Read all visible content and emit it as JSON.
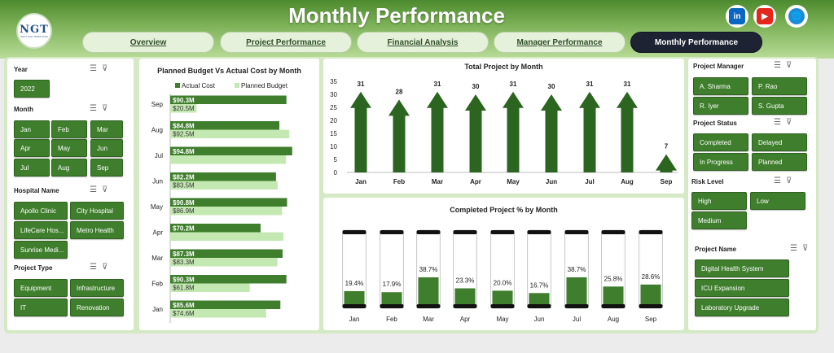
{
  "header": {
    "title": "Monthly Performance",
    "logo_text": "NGT",
    "logo_sub": "NEXT GEN TEMPLATES"
  },
  "social": [
    {
      "name": "linkedin-icon",
      "glyph": "in",
      "color": "#0a66c2"
    },
    {
      "name": "youtube-icon",
      "glyph": "▶",
      "color": "#e4261c"
    },
    {
      "name": "globe-icon",
      "glyph": "🌐",
      "color": "#1e8bd6"
    }
  ],
  "nav": {
    "tabs": [
      {
        "label": "Overview",
        "active": false
      },
      {
        "label": "Project Performance",
        "active": false
      },
      {
        "label": "Financial Analysis",
        "active": false
      },
      {
        "label": "Manager Performance",
        "active": false
      },
      {
        "label": "Monthly Performance",
        "active": true
      }
    ]
  },
  "left_slicers": [
    {
      "label": "Year",
      "items": [
        "2022"
      ]
    },
    {
      "label": "Month",
      "items": [
        "Jan",
        "Feb",
        "Mar",
        "Apr",
        "May",
        "Jun",
        "Jul",
        "Aug",
        "Sep"
      ]
    },
    {
      "label": "Hospital Name",
      "items": [
        "Apollo Clinic",
        "City Hospital",
        "LifeCare Hos...",
        "Metro Health",
        "Sunrise Medi..."
      ]
    },
    {
      "label": "Project Type",
      "items": [
        "Equipment",
        "Infrastructure",
        "IT",
        "Renovation"
      ]
    }
  ],
  "right_slicers": [
    {
      "label": "Project Manager",
      "items": [
        "A. Sharma",
        "P. Rao",
        "R. Iyer",
        "S. Gupta"
      ]
    },
    {
      "label": "Project Status",
      "items": [
        "Completed",
        "Delayed",
        "In Progress",
        "Planned"
      ]
    },
    {
      "label": "Risk Level",
      "items": [
        "High",
        "Low",
        "Medium"
      ]
    },
    {
      "label": "Project Name",
      "items": [
        "Digital Health System",
        "ICU Expansion",
        "Laboratory Upgrade"
      ]
    }
  ],
  "colors": {
    "dark_green": "#3e7e2c",
    "light_green": "#c4e8b2"
  },
  "chart_data": [
    {
      "type": "bar",
      "title": "Planned Budget Vs Actual Cost by Month",
      "categories": [
        "Sep",
        "Aug",
        "Jul",
        "Jun",
        "May",
        "Apr",
        "Mar",
        "Feb",
        "Jan"
      ],
      "series": [
        {
          "name": "Actual Cost",
          "values": [
            90.3,
            84.8,
            94.8,
            82.2,
            90.8,
            70.2,
            87.3,
            90.3,
            85.6
          ],
          "labels": [
            "$90.3M",
            "$84.8M",
            "$94.8M",
            "$82.2M",
            "$90.8M",
            "$70.2M",
            "$87.3M",
            "$90.3M",
            "$85.6M"
          ]
        },
        {
          "name": "Planned Budget",
          "values": [
            20.5,
            92.5,
            90.0,
            83.5,
            86.9,
            88.0,
            83.3,
            61.8,
            74.6
          ],
          "labels": [
            "$20.5M",
            "$92.5M",
            "",
            "$83.5M",
            "$86.9M",
            "",
            "$83.3M",
            "$61.8M",
            "$74.6M"
          ]
        }
      ],
      "xlim": [
        0,
        100
      ]
    },
    {
      "type": "bar",
      "title": "Total Project by Month",
      "categories": [
        "Jan",
        "Feb",
        "Mar",
        "Apr",
        "May",
        "Jun",
        "Jul",
        "Aug",
        "Sep"
      ],
      "values": [
        31,
        28,
        31,
        30,
        31,
        30,
        31,
        31,
        7
      ],
      "ylim": [
        0,
        35
      ],
      "yticks": [
        "0",
        "5",
        "10",
        "15",
        "20",
        "25",
        "30",
        "35"
      ]
    },
    {
      "type": "bar",
      "title": "Completed Project % by Month",
      "categories": [
        "Jan",
        "Feb",
        "Mar",
        "Apr",
        "May",
        "Jun",
        "Jul",
        "Aug",
        "Sep"
      ],
      "values": [
        19.4,
        17.9,
        38.7,
        23.3,
        20.0,
        16.7,
        38.7,
        25.8,
        28.6
      ],
      "labels": [
        "19.4%",
        "17.9%",
        "38.7%",
        "23.3%",
        "20.0%",
        "16.7%",
        "38.7%",
        "25.8%",
        "28.6%"
      ],
      "ylim": [
        0,
        100
      ]
    }
  ]
}
